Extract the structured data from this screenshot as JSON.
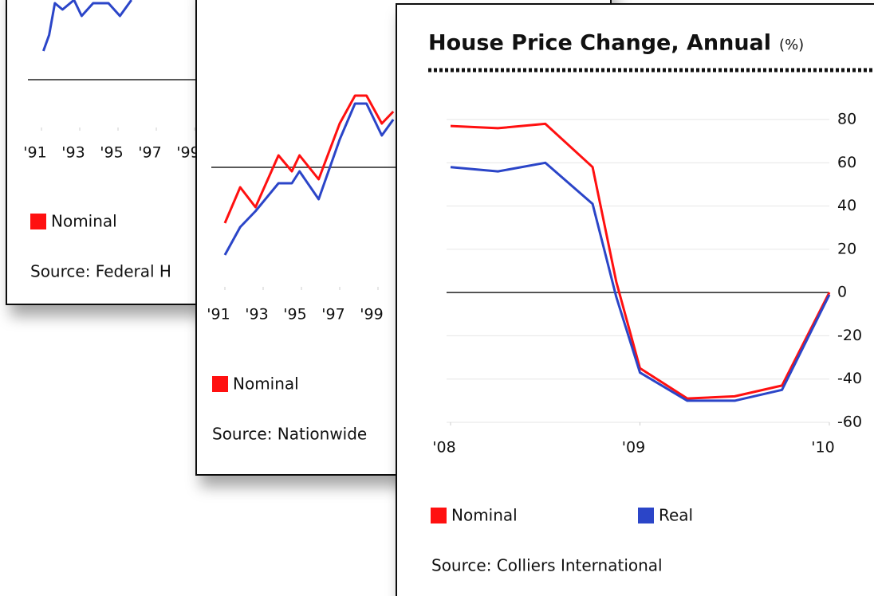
{
  "chart_data": [
    {
      "type": "line",
      "x": [
        1991.1,
        1991.4,
        1991.7,
        1992.1,
        1992.7,
        1993.1,
        1993.7,
        1994.5,
        1995.1,
        1995.7
      ],
      "series": [
        {
          "name": "Nominal",
          "color": "#ff1010",
          "values": [
            null,
            null,
            null,
            null,
            null,
            null,
            null,
            null,
            null,
            null
          ]
        },
        {
          "color": "#2b45c8",
          "values": [
            9,
            14,
            24,
            22,
            25,
            20,
            24,
            24,
            20,
            25
          ]
        }
      ],
      "xlim": [
        1990.5,
        2000
      ],
      "xticks": [
        {
          "value": 1991,
          "label": "'91"
        },
        {
          "value": 1993,
          "label": "'93"
        },
        {
          "value": 1995,
          "label": "'95"
        },
        {
          "value": 1997,
          "label": "'97"
        },
        {
          "value": 1999,
          "label": "'99"
        }
      ],
      "ylim": [
        -15,
        40
      ],
      "source": "Source: Federal H"
    },
    {
      "type": "line",
      "x": [
        1991,
        1991.8,
        1992.6,
        1993.8,
        1994.5,
        1994.9,
        1995.9,
        1997,
        1997.8,
        1998.4,
        1999.2,
        1999.8
      ],
      "series": [
        {
          "name": "Nominal",
          "color": "#ff1010",
          "values": [
            -14,
            -5,
            -10,
            3,
            -1,
            3,
            -3,
            11,
            18,
            18,
            11,
            14
          ]
        },
        {
          "color": "#2b45c8",
          "values": [
            -22,
            -15,
            -11,
            -4,
            -4,
            -1,
            -8,
            7,
            16,
            16,
            8,
            12
          ]
        }
      ],
      "xlim": [
        1990.5,
        2010
      ],
      "xticks": [
        {
          "value": 1991,
          "label": "'91"
        },
        {
          "value": 1993,
          "label": "'93"
        },
        {
          "value": 1995,
          "label": "'95"
        },
        {
          "value": 1997,
          "label": "'97"
        },
        {
          "value": 1999,
          "label": "'99"
        }
      ],
      "ylim": [
        -30,
        30
      ],
      "source": "Source: Nationwide"
    },
    {
      "type": "line",
      "title": "House Price Change, Annual",
      "title_unit": "(%)",
      "x": [
        2008,
        2008.25,
        2008.5,
        2008.75,
        2008.875,
        2009,
        2009.25,
        2009.5,
        2009.75,
        2010
      ],
      "series": [
        {
          "name": "Nominal",
          "color": "#ff1010",
          "values": [
            77,
            76,
            78,
            58,
            5,
            -35,
            -49,
            -48,
            -43,
            0
          ]
        },
        {
          "name": "Real",
          "color": "#2b45c8",
          "values": [
            58,
            56,
            60,
            41,
            -2,
            -37,
            -50,
            -50,
            -45,
            -1
          ]
        }
      ],
      "xlim": [
        2008,
        2010
      ],
      "xticks": [
        {
          "value": 2008,
          "label": "'08"
        },
        {
          "value": 2009,
          "label": "'09"
        },
        {
          "value": 2010,
          "label": "'10"
        }
      ],
      "ylim": [
        -60,
        80
      ],
      "yticks": [
        80,
        60,
        40,
        20,
        0,
        -20,
        -40,
        -60
      ],
      "grid": true,
      "source": "Source: Colliers International"
    }
  ]
}
